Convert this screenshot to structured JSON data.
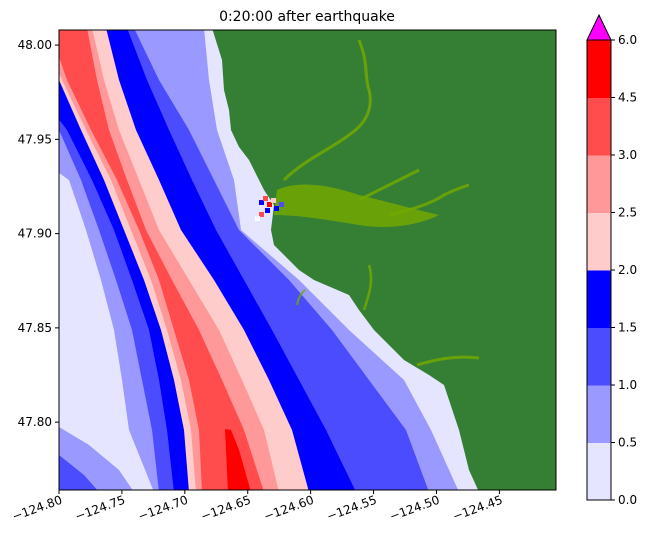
{
  "chart_data": {
    "type": "heatmap",
    "title": "0:20:00 after earthquake",
    "xlabel": "",
    "ylabel": "",
    "xlim": [
      -124.8,
      -124.405
    ],
    "ylim": [
      47.764,
      48.008
    ],
    "x_ticks": [
      -124.8,
      -124.75,
      -124.7,
      -124.65,
      -124.6,
      -124.55,
      -124.5,
      -124.45
    ],
    "x_tick_labels": [
      "−124.80",
      "−124.75",
      "−124.70",
      "−124.65",
      "−124.60",
      "−124.55",
      "−124.50",
      "−124.45"
    ],
    "y_ticks": [
      48.0,
      47.95,
      47.9,
      47.85,
      47.8
    ],
    "y_tick_labels": [
      "48.00",
      "47.95",
      "47.90",
      "47.85",
      "47.80"
    ],
    "grid": false,
    "colorbar": {
      "levels": [
        0.0,
        0.5,
        1.0,
        1.5,
        2.0,
        2.5,
        3.0,
        4.5,
        6.0
      ],
      "tick_labels": [
        "0.0",
        "0.5",
        "1.0",
        "1.5",
        "2.0",
        "2.5",
        "3.0",
        "4.5",
        "6.0"
      ],
      "colors": [
        "#e5e5ff",
        "#9999ff",
        "#4c4cff",
        "#0000ff",
        "#ffcccc",
        "#ff9999",
        "#ff4c4c",
        "#ff0000"
      ],
      "extend_max_color": "#ff00ff",
      "placement": "right"
    },
    "land_color": "#357f35",
    "river_color": "#72a800"
  }
}
